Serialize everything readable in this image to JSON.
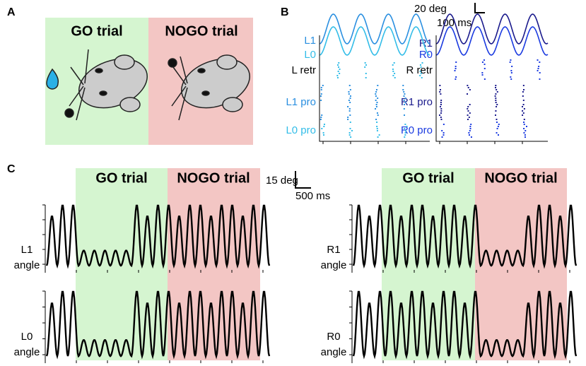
{
  "panel_a": {
    "label": "A",
    "go": "GO trial",
    "nogo": "NOGO trial"
  },
  "panel_b": {
    "label": "B",
    "scale_y": "20 deg",
    "scale_x": "100 ms",
    "left": {
      "trace_1": "L1",
      "trace_0": "L0",
      "retr": "L retr",
      "pro_1": "L1 pro",
      "pro_0": "L0 pro"
    },
    "right": {
      "trace_1": "R1",
      "trace_0": "R0",
      "retr": "R retr",
      "pro_1": "R1 pro",
      "pro_0": "R0 pro"
    }
  },
  "panel_c": {
    "label": "C",
    "scale_y": "15 deg",
    "scale_x": "500 ms",
    "left": {
      "go": "GO trial",
      "nogo": "NOGO trial",
      "plots": [
        {
          "name": "L1",
          "unit": "angle"
        },
        {
          "name": "L0",
          "unit": "angle"
        }
      ]
    },
    "right": {
      "go": "GO trial",
      "nogo": "NOGO trial",
      "plots": [
        {
          "name": "R1",
          "unit": "angle"
        },
        {
          "name": "R0",
          "unit": "angle"
        }
      ]
    }
  }
}
